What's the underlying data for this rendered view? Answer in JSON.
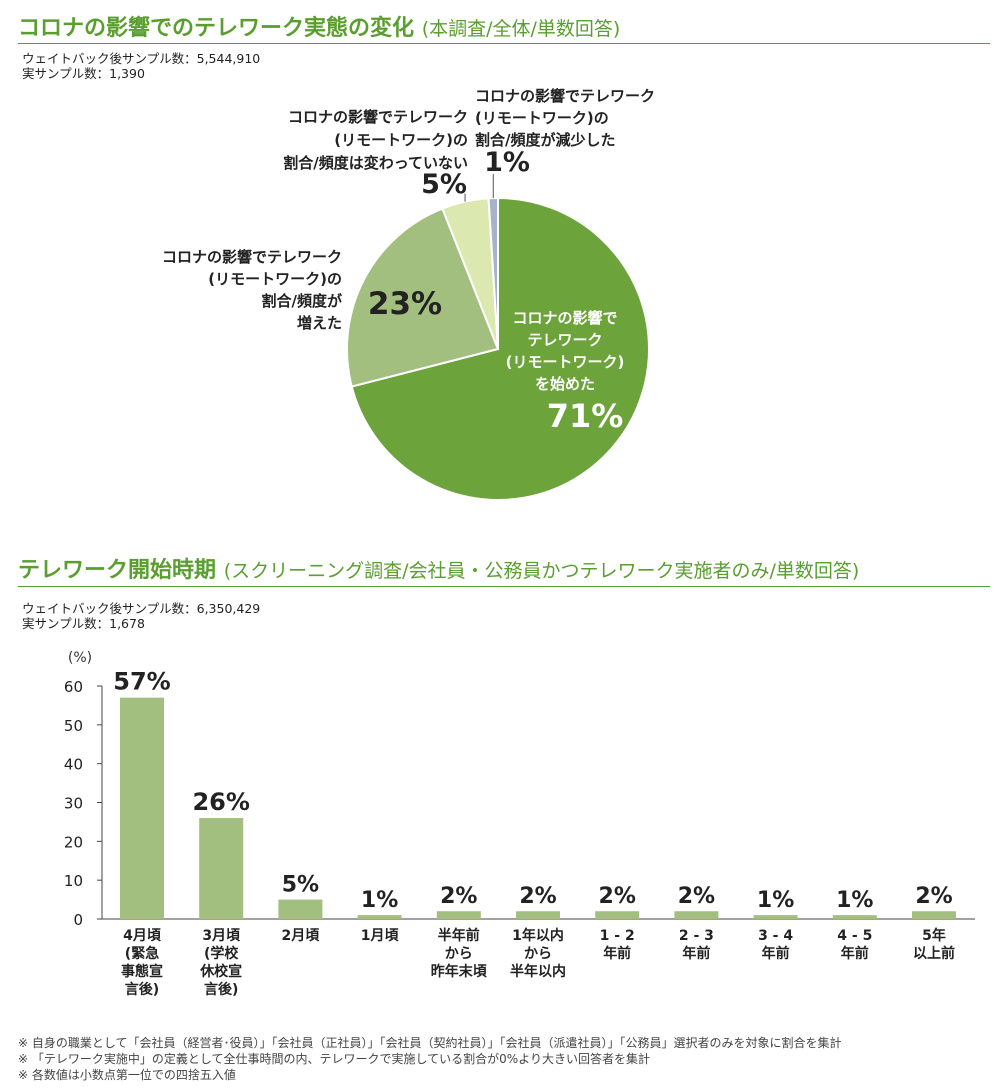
{
  "pie_section": {
    "title": "コロナの影響でのテレワーク実態の変化",
    "subtitle": "(本調査/全体/単数回答)",
    "weighted_sample": "ウェイトバック後サンプル数：5,544,910",
    "actual_sample": "実サンプル数：1,390"
  },
  "bar_section": {
    "title": "テレワーク開始時期",
    "subtitle": "(スクリーニング調査/会社員・公務員かつテレワーク実施者のみ/単数回答)",
    "weighted_sample": "ウェイトバック後サンプル数：6,350,429",
    "actual_sample": "実サンプル数：1,678"
  },
  "chart_data": [
    {
      "type": "pie",
      "slices": [
        {
          "label_lines": [
            "コロナの影響で",
            "テレワーク",
            "(リモートワーク)",
            "を始めた"
          ],
          "value": 71,
          "value_label": "71%",
          "color": "#6ca33a"
        },
        {
          "label_lines": [
            "コロナの影響でテレワーク",
            "(リモートワーク)の",
            "割合/頻度が",
            "増えた"
          ],
          "value": 23,
          "value_label": "23%",
          "color": "#a3bf7f"
        },
        {
          "label_lines": [
            "コロナの影響でテレワーク",
            "(リモートワーク)の",
            "割合/頻度は変わっていない"
          ],
          "value": 5,
          "value_label": "5%",
          "color": "#dbe9b0"
        },
        {
          "label_lines": [
            "コロナの影響でテレワーク",
            "(リモートワーク)の",
            "割合/頻度が減少した"
          ],
          "value": 1,
          "value_label": "1%",
          "color": "#a6b4c8"
        }
      ]
    },
    {
      "type": "bar",
      "ylabel": "(%)",
      "ylim": [
        0,
        60
      ],
      "yticks": [
        0,
        10,
        20,
        30,
        40,
        50,
        60
      ],
      "bar_color": "#a3bf7f",
      "categories": [
        [
          "4月頃",
          "(緊急",
          "事態宣",
          "言後)"
        ],
        [
          "3月頃",
          "(学校",
          "休校宣",
          "言後)"
        ],
        [
          "2月頃"
        ],
        [
          "1月頃"
        ],
        [
          "半年前",
          "から",
          "昨年末頃"
        ],
        [
          "1年以内",
          "から",
          "半年以内"
        ],
        [
          "1 - 2",
          "年前"
        ],
        [
          "2 - 3",
          "年前"
        ],
        [
          "3 - 4",
          "年前"
        ],
        [
          "4 - 5",
          "年前"
        ],
        [
          "5年",
          "以上前"
        ]
      ],
      "values": [
        57,
        26,
        5,
        1,
        2,
        2,
        2,
        2,
        1,
        1,
        2
      ],
      "value_labels": [
        "57%",
        "26%",
        "5%",
        "1%",
        "2%",
        "2%",
        "2%",
        "2%",
        "1%",
        "1%",
        "2%"
      ]
    }
  ],
  "notes": [
    "※ 自身の職業として「会社員（経営者･役員）」「会社員（正社員）」「会社員（契約社員）」「会社員（派遣社員）」「公務員」選択者のみを対象に割合を集計",
    "※ 「テレワーク実施中」の定義として全仕事時間の内、テレワークで実施している割合が0%より大きい回答者を集計",
    "※ 各数値は小数点第一位での四捨五入値"
  ]
}
